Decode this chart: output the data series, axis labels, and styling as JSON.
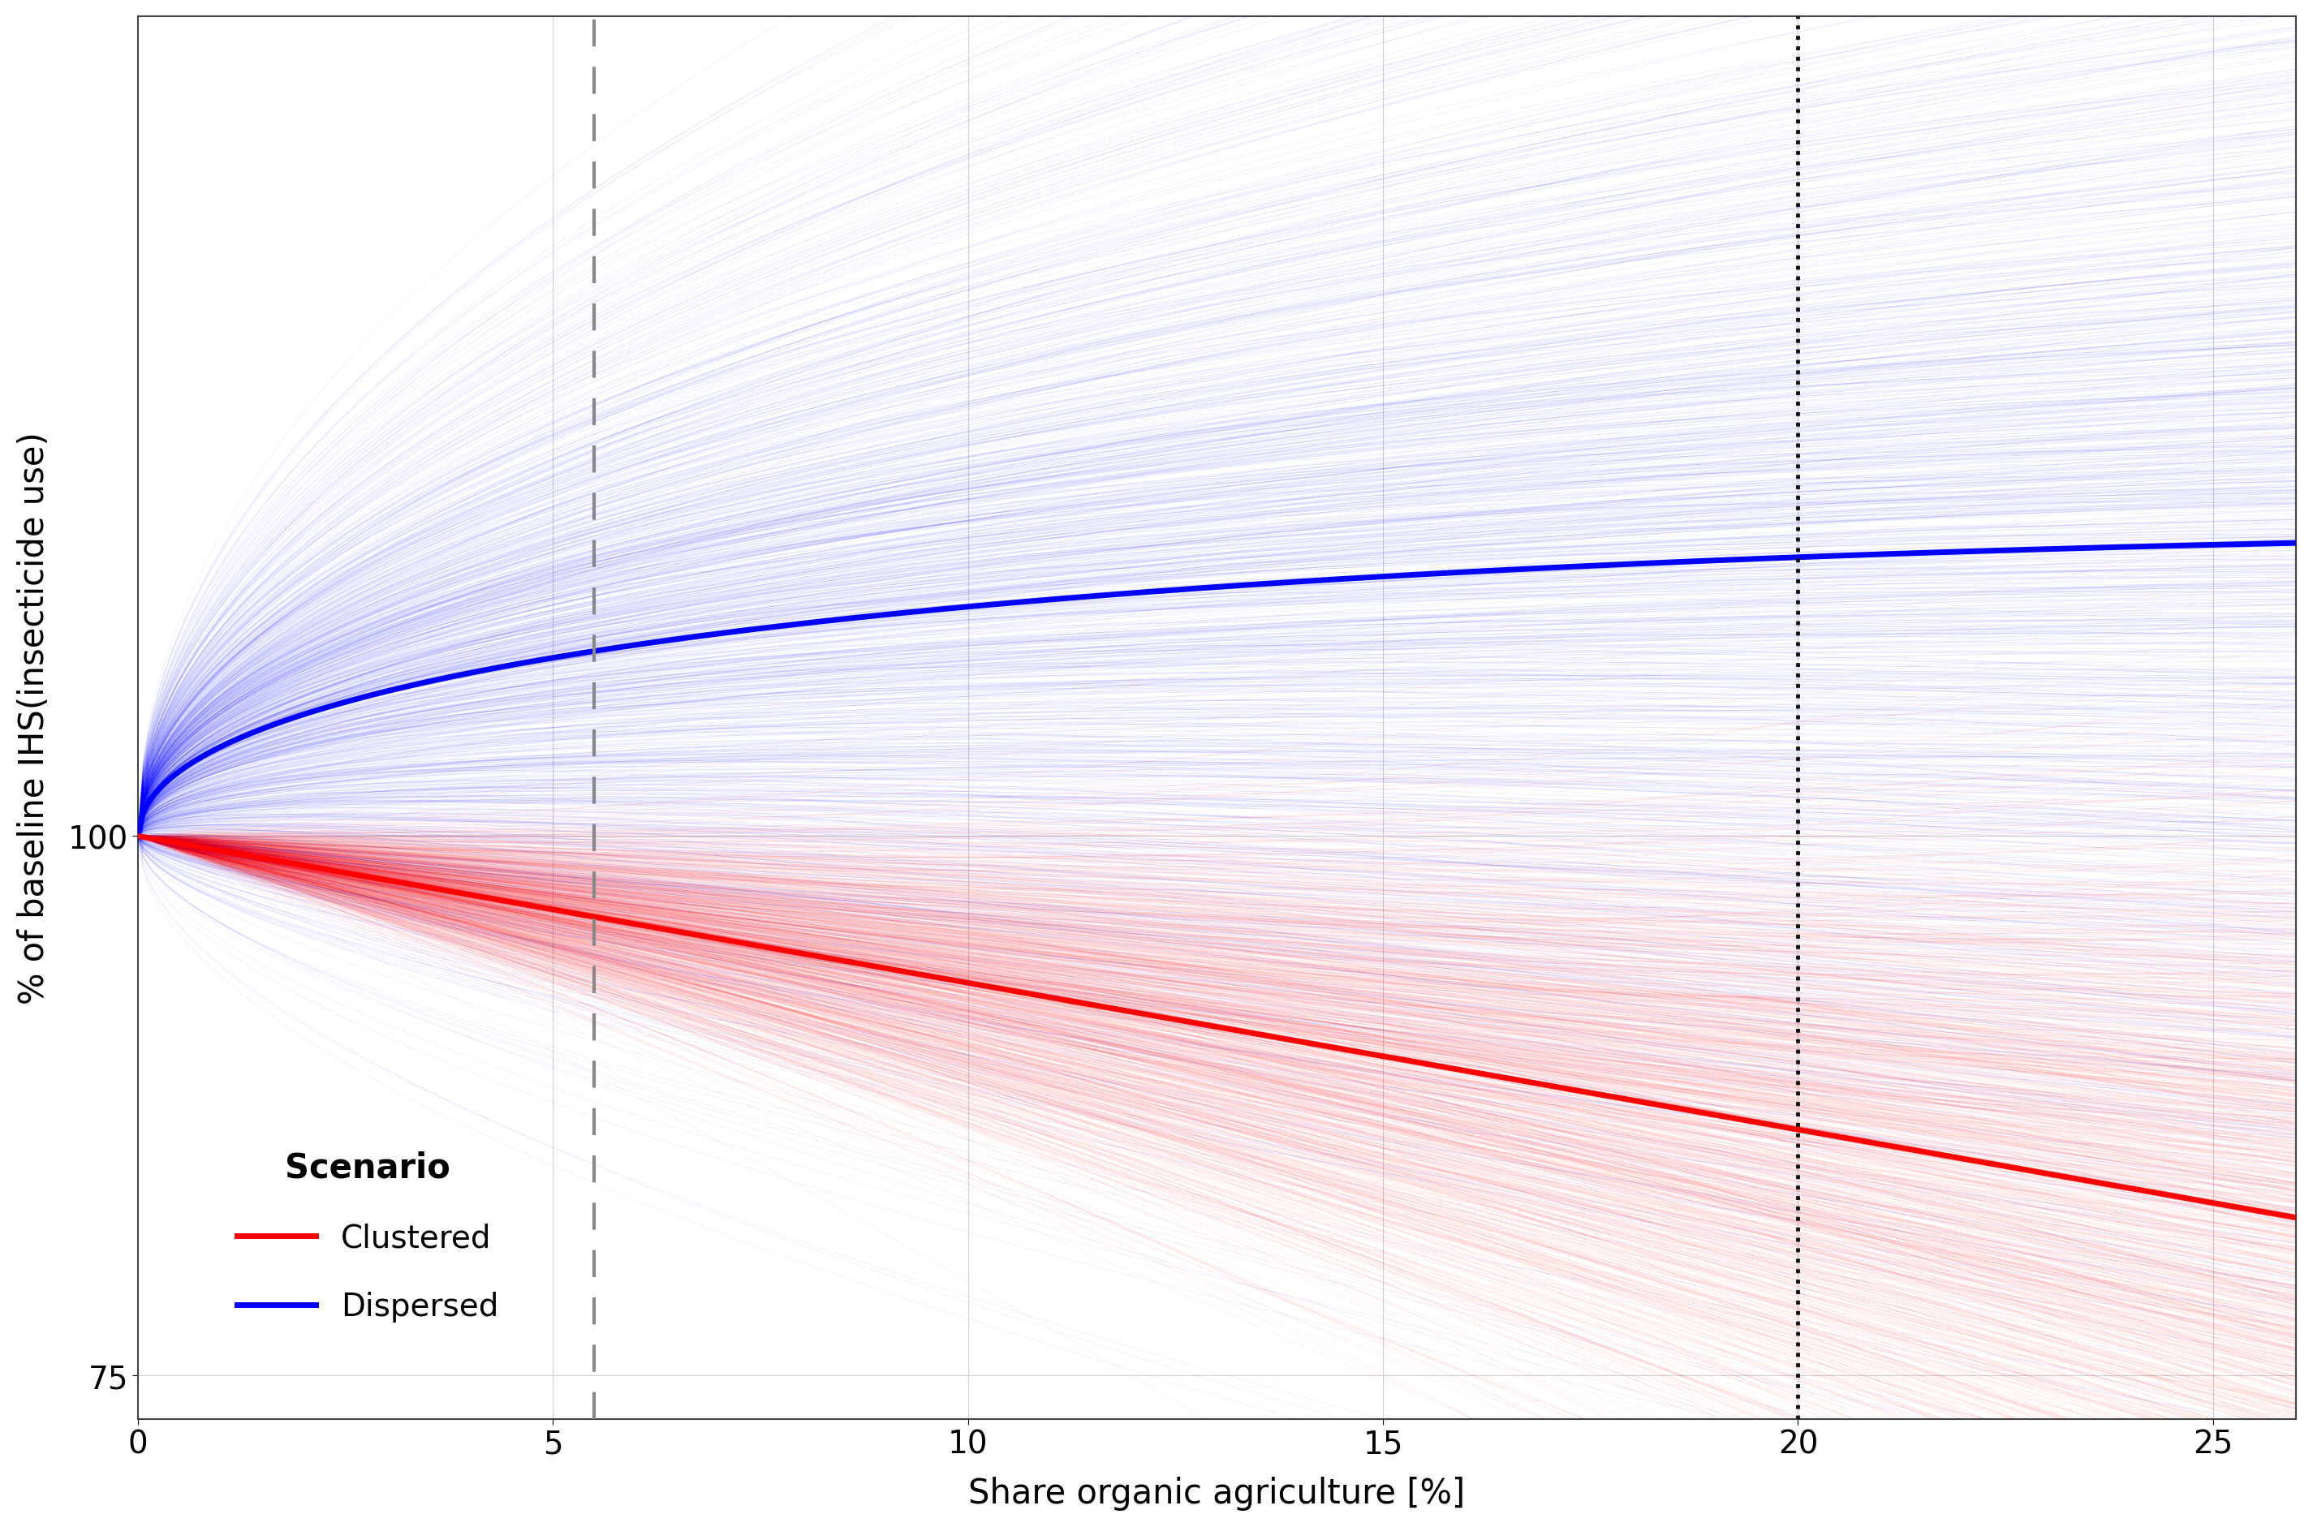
{
  "x_min": 0,
  "x_max": 26,
  "y_min": 73,
  "y_max": 138,
  "x_ticks": [
    0,
    5,
    10,
    15,
    20,
    25
  ],
  "y_ticks": [
    75,
    100
  ],
  "xlabel": "Share organic agriculture [%]",
  "ylabel": "% of baseline IHS(insecticide use)",
  "background_color": "#ffffff",
  "grid_color": "#d0d0d0",
  "vline1_x": 5.5,
  "vline1_color": "#888888",
  "vline2_x": 20,
  "vline2_color": "#111111",
  "n_simulations": 1000,
  "red_color": "#FF0000",
  "blue_color": "#0000FF",
  "sim_alpha": 0.06,
  "sim_linewidth": 0.7,
  "mean_linewidth": 5.0,
  "legend_title": "Scenario",
  "legend_entries": [
    "Clustered",
    "Dispersed"
  ],
  "axis_label_fontsize": 30,
  "tick_fontsize": 28,
  "legend_fontsize": 28,
  "legend_title_fontsize": 30,
  "red_mean_slope": 0.68,
  "blue_mean_a": 4.5,
  "blue_mean_b": 0.36,
  "red_slope_std": 0.35,
  "blue_a_std": 3.5,
  "blue_b_std": 0.15
}
